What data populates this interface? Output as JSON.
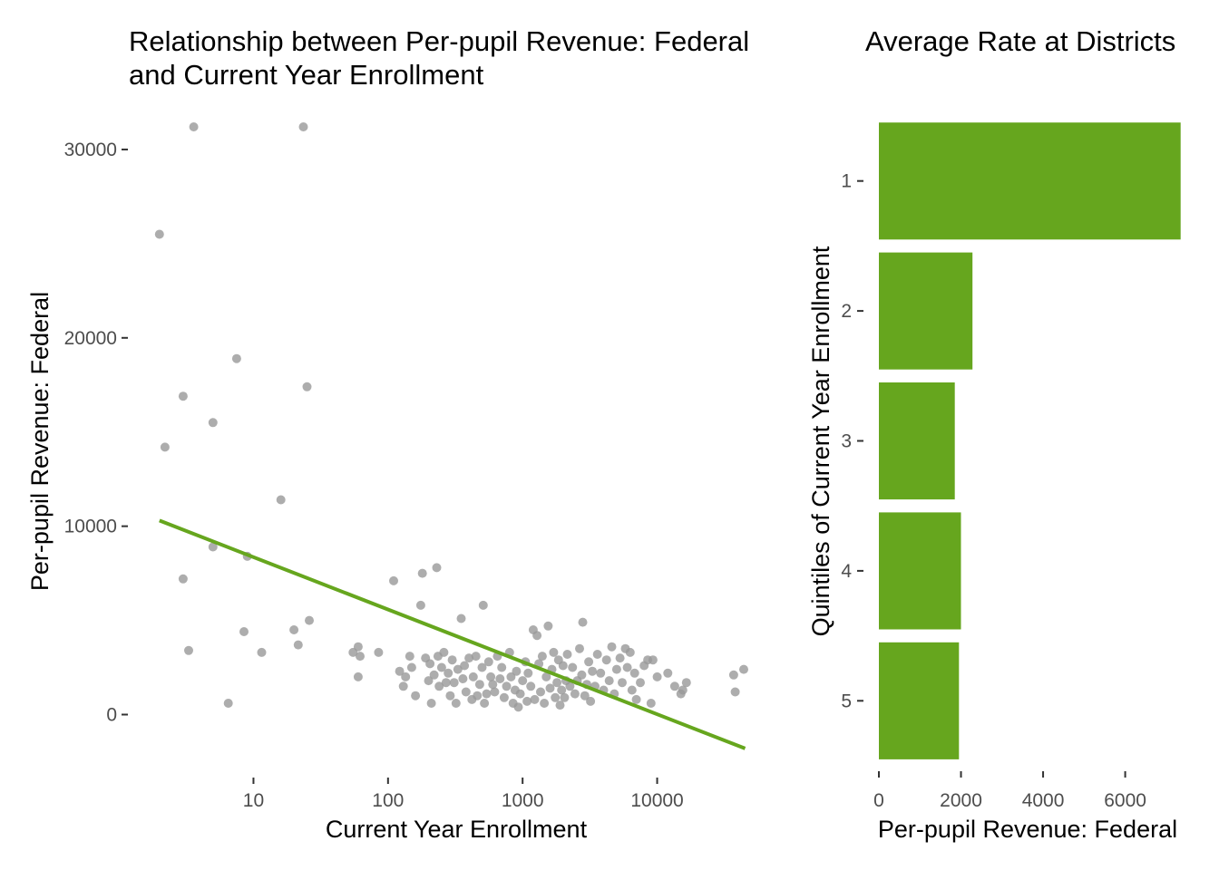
{
  "chart_data": [
    {
      "type": "scatter",
      "title": "Relationship between Per-pupil Revenue: Federal and Current Year Enrollment",
      "title_lines": [
        "Relationship between Per-pupil Revenue: Federal",
        "and Current Year Enrollment"
      ],
      "xlabel": "Current Year Enrollment",
      "ylabel": "Per-pupil Revenue: Federal",
      "x_scale": "log10",
      "xlim": [
        1.3,
        60000
      ],
      "ylim": [
        -3200,
        32500
      ],
      "x_ticks": [
        10,
        100,
        1000,
        10000
      ],
      "x_tick_labels": [
        "10",
        "100",
        "1000",
        "10000"
      ],
      "y_ticks": [
        0,
        10000,
        20000,
        30000
      ],
      "y_tick_labels": [
        "0",
        "10000",
        "20000",
        "30000"
      ],
      "grid": false,
      "point_color": "#999999",
      "line_color": "#66A61E",
      "trend_line": {
        "x": [
          2,
          45000
        ],
        "y": [
          10300,
          -1800
        ]
      },
      "points": [
        [
          2,
          25500
        ],
        [
          2.2,
          14200
        ],
        [
          3,
          16900
        ],
        [
          3.6,
          31200
        ],
        [
          3,
          7200
        ],
        [
          3.3,
          3400
        ],
        [
          5,
          15500
        ],
        [
          5,
          8900
        ],
        [
          6.5,
          600
        ],
        [
          7.5,
          18900
        ],
        [
          9,
          8400
        ],
        [
          8.5,
          4400
        ],
        [
          11.5,
          3300
        ],
        [
          16,
          11400
        ],
        [
          20,
          4500
        ],
        [
          21.5,
          3700
        ],
        [
          23.5,
          31200
        ],
        [
          25,
          17400
        ],
        [
          26,
          5000
        ],
        [
          55,
          3300
        ],
        [
          60,
          3600
        ],
        [
          60,
          2000
        ],
        [
          62,
          3100
        ],
        [
          85,
          3300
        ],
        [
          110,
          7100
        ],
        [
          122,
          2300
        ],
        [
          130,
          1500
        ],
        [
          135,
          2000
        ],
        [
          145,
          3100
        ],
        [
          150,
          2500
        ],
        [
          160,
          1000
        ],
        [
          175,
          5800
        ],
        [
          180,
          7500
        ],
        [
          190,
          3000
        ],
        [
          200,
          1800
        ],
        [
          205,
          2700
        ],
        [
          210,
          600
        ],
        [
          220,
          2100
        ],
        [
          230,
          7800
        ],
        [
          235,
          3100
        ],
        [
          240,
          1500
        ],
        [
          250,
          2500
        ],
        [
          260,
          3300
        ],
        [
          270,
          1700
        ],
        [
          280,
          2200
        ],
        [
          290,
          1000
        ],
        [
          300,
          2900
        ],
        [
          310,
          1700
        ],
        [
          320,
          600
        ],
        [
          330,
          2400
        ],
        [
          350,
          5100
        ],
        [
          360,
          1900
        ],
        [
          370,
          2600
        ],
        [
          380,
          1200
        ],
        [
          400,
          3000
        ],
        [
          420,
          800
        ],
        [
          430,
          2000
        ],
        [
          450,
          3100
        ],
        [
          460,
          1000
        ],
        [
          480,
          1600
        ],
        [
          500,
          2500
        ],
        [
          510,
          5800
        ],
        [
          520,
          600
        ],
        [
          540,
          1100
        ],
        [
          560,
          2800
        ],
        [
          580,
          2000
        ],
        [
          600,
          1600
        ],
        [
          620,
          1200
        ],
        [
          650,
          3100
        ],
        [
          680,
          1900
        ],
        [
          700,
          2500
        ],
        [
          730,
          900
        ],
        [
          760,
          1500
        ],
        [
          800,
          3300
        ],
        [
          820,
          2000
        ],
        [
          850,
          600
        ],
        [
          880,
          1300
        ],
        [
          900,
          2300
        ],
        [
          930,
          400
        ],
        [
          960,
          1100
        ],
        [
          1000,
          1800
        ],
        [
          1050,
          2800
        ],
        [
          1080,
          700
        ],
        [
          1100,
          2200
        ],
        [
          1150,
          1500
        ],
        [
          1200,
          4500
        ],
        [
          1230,
          800
        ],
        [
          1280,
          4200
        ],
        [
          1320,
          2700
        ],
        [
          1360,
          1200
        ],
        [
          1400,
          3100
        ],
        [
          1450,
          600
        ],
        [
          1500,
          2000
        ],
        [
          1550,
          4700
        ],
        [
          1600,
          1400
        ],
        [
          1650,
          2400
        ],
        [
          1700,
          3300
        ],
        [
          1750,
          900
        ],
        [
          1800,
          1700
        ],
        [
          1850,
          2900
        ],
        [
          1900,
          500
        ],
        [
          1950,
          1300
        ],
        [
          2000,
          2600
        ],
        [
          2050,
          900
        ],
        [
          2100,
          1800
        ],
        [
          2150,
          3200
        ],
        [
          2250,
          1500
        ],
        [
          2350,
          2500
        ],
        [
          2450,
          1100
        ],
        [
          2550,
          1800
        ],
        [
          2650,
          3500
        ],
        [
          2750,
          2100
        ],
        [
          2800,
          4900
        ],
        [
          2900,
          1000
        ],
        [
          3000,
          1600
        ],
        [
          3100,
          2800
        ],
        [
          3200,
          700
        ],
        [
          3300,
          2300
        ],
        [
          3450,
          1500
        ],
        [
          3600,
          3200
        ],
        [
          3800,
          2200
        ],
        [
          4000,
          1300
        ],
        [
          4200,
          2900
        ],
        [
          4400,
          1800
        ],
        [
          4600,
          3600
        ],
        [
          4800,
          1100
        ],
        [
          5000,
          2400
        ],
        [
          5300,
          3000
        ],
        [
          5500,
          1700
        ],
        [
          5800,
          3500
        ],
        [
          6000,
          2500
        ],
        [
          6300,
          3300
        ],
        [
          6500,
          1300
        ],
        [
          6800,
          2200
        ],
        [
          7000,
          800
        ],
        [
          7500,
          1700
        ],
        [
          8000,
          2600
        ],
        [
          8500,
          2900
        ],
        [
          9000,
          600
        ],
        [
          9300,
          2900
        ],
        [
          10000,
          2000
        ],
        [
          12000,
          2200
        ],
        [
          13500,
          1500
        ],
        [
          15000,
          1100
        ],
        [
          15500,
          1300
        ],
        [
          16500,
          1700
        ],
        [
          37000,
          2100
        ],
        [
          38000,
          1200
        ],
        [
          44000,
          2400
        ]
      ]
    },
    {
      "type": "bar",
      "orientation": "horizontal",
      "title": "Average Rate at Districts",
      "xlabel": "Per-pupil Revenue: Federal",
      "ylabel": "Quintiles of Current Year Enrollment",
      "categories": [
        "1",
        "2",
        "3",
        "4",
        "5"
      ],
      "values": [
        7350,
        2280,
        1850,
        2000,
        1950
      ],
      "xlim": [
        0,
        7600
      ],
      "x_ticks": [
        0,
        2000,
        4000,
        6000
      ],
      "x_tick_labels": [
        "0",
        "2000",
        "4000",
        "6000"
      ],
      "grid": false,
      "bar_color": "#66A61E"
    }
  ]
}
